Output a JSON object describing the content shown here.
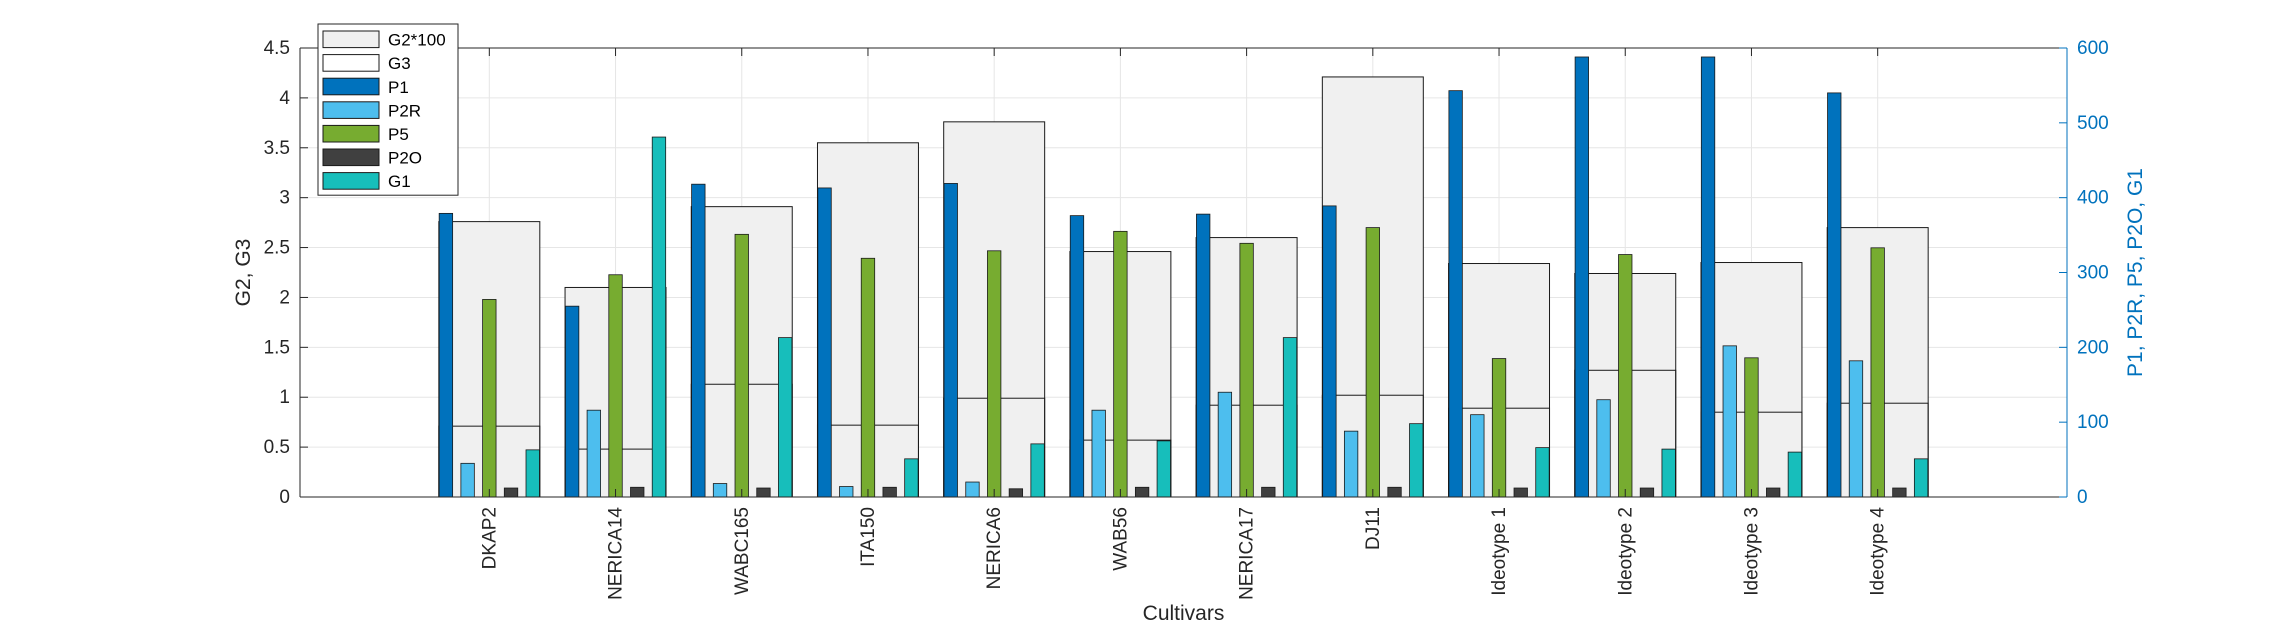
{
  "chart_data": {
    "type": "bar",
    "xlabel": "Cultivars",
    "ylabel_left": "G2, G3",
    "ylabel_right": "P1, P2R, P5, P2O, G1",
    "ylim_left": [
      0,
      4.5
    ],
    "ylim_right": [
      0,
      600
    ],
    "yticks_left": [
      "0",
      "0.5",
      "1",
      "1.5",
      "2",
      "2.5",
      "3",
      "3.5",
      "4",
      "4.5"
    ],
    "yticks_right": [
      "0",
      "100",
      "200",
      "300",
      "400",
      "500",
      "600"
    ],
    "grid": true,
    "legend_position": "top-left",
    "categories": [
      "DKAP2",
      "NERICA14",
      "WABC165",
      "ITA150",
      "NERICA6",
      "WAB56",
      "NERICA17",
      "DJ11",
      "Ideotype 1",
      "Ideotype 2",
      "Ideotype 3",
      "Ideotype 4"
    ],
    "background_series": [
      {
        "name": "G2*100",
        "axis": "left",
        "color": "#f0f0f0",
        "values": [
          2.76,
          2.1,
          2.91,
          3.55,
          3.76,
          2.46,
          2.6,
          4.21,
          2.34,
          2.24,
          2.35,
          2.7
        ]
      },
      {
        "name": "G3",
        "axis": "left",
        "color": "#ffffff",
        "values": [
          0.71,
          0.48,
          1.13,
          0.72,
          0.99,
          0.57,
          0.92,
          1.02,
          0.89,
          1.27,
          0.85,
          0.94
        ]
      }
    ],
    "series": [
      {
        "name": "P1",
        "axis": "right",
        "color": "#0072bd",
        "values": [
          379,
          255,
          418,
          413,
          419,
          376,
          378,
          389,
          543,
          588,
          588,
          540
        ]
      },
      {
        "name": "P2R",
        "axis": "right",
        "color": "#4dbeee",
        "values": [
          45,
          116,
          18,
          14,
          20,
          116,
          140,
          88,
          110,
          130,
          202,
          182
        ]
      },
      {
        "name": "P5",
        "axis": "right",
        "color": "#77ac30",
        "values": [
          264,
          297,
          351,
          319,
          329,
          355,
          339,
          360,
          185,
          324,
          186,
          333
        ]
      },
      {
        "name": "P2O",
        "axis": "right",
        "color": "#404040",
        "values": [
          12,
          13,
          12,
          13,
          11,
          13,
          13,
          13,
          12,
          12,
          12,
          12
        ]
      },
      {
        "name": "G1",
        "axis": "right",
        "color": "#17bebb",
        "values": [
          63,
          481,
          213,
          51,
          71,
          75,
          213,
          98,
          66,
          64,
          60,
          51
        ]
      }
    ]
  }
}
